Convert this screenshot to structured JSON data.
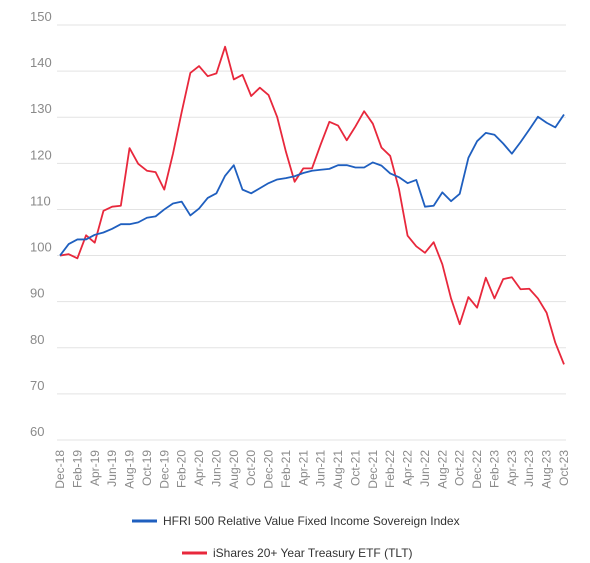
{
  "chart_data": {
    "type": "line",
    "title": "",
    "xlabel": "",
    "ylabel": "",
    "ylim": [
      60,
      150
    ],
    "yticks": [
      "60",
      "70",
      "80",
      "90",
      "100",
      "110",
      "120",
      "130",
      "140",
      "150"
    ],
    "grid": true,
    "legend_position": "bottom",
    "x_tick_labels": [
      "Dec-18",
      "Feb-19",
      "Apr-19",
      "Jun-19",
      "Aug-19",
      "Oct-19",
      "Dec-19",
      "Feb-20",
      "Apr-20",
      "Jun-20",
      "Aug-20",
      "Oct-20",
      "Dec-20",
      "Feb-21",
      "Apr-21",
      "Jun-21",
      "Aug-21",
      "Oct-21",
      "Dec-21",
      "Feb-22",
      "Apr-22",
      "Jun-22",
      "Aug-22",
      "Oct-22",
      "Dec-22",
      "Feb-23",
      "Apr-23",
      "Jun-23",
      "Aug-23",
      "Oct-23"
    ],
    "x": [
      "Dec-18",
      "Jan-19",
      "Feb-19",
      "Mar-19",
      "Apr-19",
      "May-19",
      "Jun-19",
      "Jul-19",
      "Aug-19",
      "Sep-19",
      "Oct-19",
      "Nov-19",
      "Dec-19",
      "Jan-20",
      "Feb-20",
      "Mar-20",
      "Apr-20",
      "May-20",
      "Jun-20",
      "Jul-20",
      "Aug-20",
      "Sep-20",
      "Oct-20",
      "Nov-20",
      "Dec-20",
      "Jan-21",
      "Feb-21",
      "Mar-21",
      "Apr-21",
      "May-21",
      "Jun-21",
      "Jul-21",
      "Aug-21",
      "Sep-21",
      "Oct-21",
      "Nov-21",
      "Dec-21",
      "Jan-22",
      "Feb-22",
      "Mar-22",
      "Apr-22",
      "May-22",
      "Jun-22",
      "Jul-22",
      "Aug-22",
      "Sep-22",
      "Oct-22",
      "Nov-22",
      "Dec-22",
      "Jan-23",
      "Feb-23",
      "Mar-23",
      "Apr-23",
      "May-23",
      "Jun-23",
      "Jul-23",
      "Aug-23",
      "Sep-23",
      "Oct-23"
    ],
    "series": [
      {
        "name": "HFRI 500 Relative Value Fixed Income Sovereign Index",
        "color": "#1f5fbf",
        "values": [
          100,
          102.5,
          103.5,
          103.5,
          104.5,
          105,
          105.8,
          106.8,
          106.8,
          107.2,
          108.2,
          108.5,
          110,
          111.3,
          111.7,
          108.7,
          110.2,
          112.5,
          113.5,
          117.3,
          119.6,
          114.3,
          113.5,
          114.6,
          115.7,
          116.5,
          116.8,
          117.2,
          117.9,
          118.4,
          118.6,
          118.8,
          119.6,
          119.6,
          119.1,
          119.1,
          120.2,
          119.5,
          117.8,
          117,
          115.7,
          116.4,
          110.6,
          110.8,
          113.7,
          111.8,
          113.4,
          121.2,
          124.8,
          126.6,
          126.2,
          124.3,
          122.1,
          124.6,
          127.3,
          130.1,
          128.8,
          127.8,
          130.6
        ]
      },
      {
        "name": "iShares 20+ Year Treasury ETF (TLT)",
        "color": "#e8283c",
        "values": [
          100,
          100.3,
          99.4,
          104.4,
          102.8,
          109.7,
          110.6,
          110.8,
          123.3,
          119.9,
          118.4,
          118.1,
          114.3,
          122.1,
          131.1,
          139.6,
          141.1,
          138.9,
          139.5,
          145.3,
          138.2,
          139.2,
          134.6,
          136.4,
          134.8,
          130,
          122.5,
          116,
          118.9,
          118.9,
          124.1,
          129,
          128.2,
          125,
          128,
          131.3,
          128.6,
          123.4,
          121.6,
          114.5,
          104.3,
          102,
          100.6,
          102.9,
          98.1,
          90.7,
          85.1,
          91,
          88.7,
          95.2,
          90.7,
          94.9,
          95.3,
          92.7,
          92.8,
          90.7,
          87.6,
          81.1,
          76.4
        ]
      }
    ]
  }
}
